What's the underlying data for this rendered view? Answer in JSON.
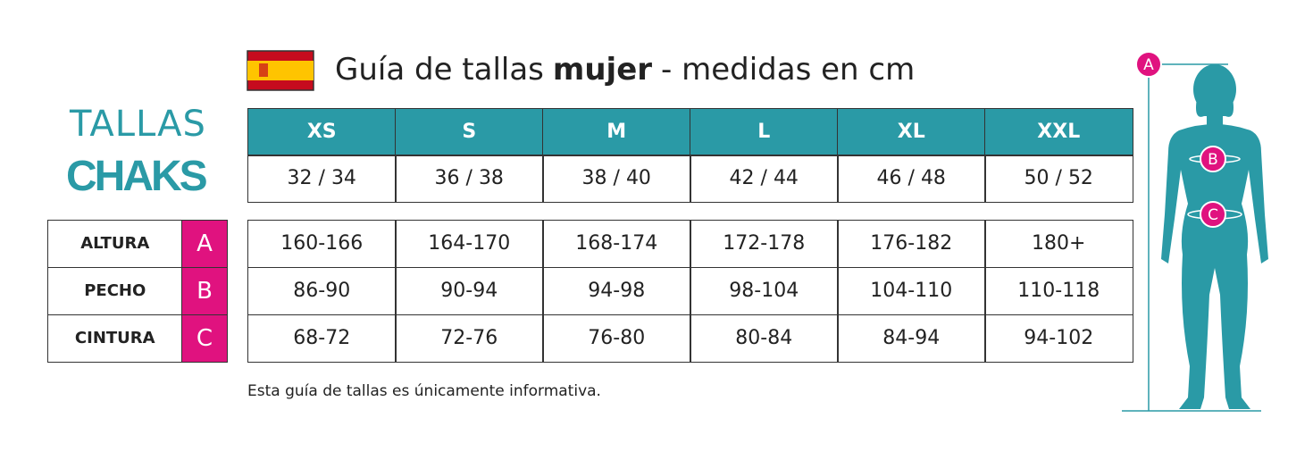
{
  "header": {
    "title": {
      "prefix": "Guía de tallas",
      "emphasis": "mujer",
      "suffix": "- medidas en cm"
    }
  },
  "logo": {
    "line1": "TALLAS",
    "line2": "CHAKS"
  },
  "table": {
    "sizes": [
      "XS",
      "S",
      "M",
      "L",
      "XL",
      "XXL"
    ],
    "eu_sizes": [
      "32 / 34",
      "36 / 38",
      "38 / 40",
      "42 / 44",
      "46 / 48",
      "50 / 52"
    ],
    "rows": [
      {
        "label": "ALTURA",
        "key": "A",
        "values": [
          "160-166",
          "164-170",
          "168-174",
          "172-178",
          "176-182",
          "180+"
        ]
      },
      {
        "label": "PECHO",
        "key": "B",
        "values": [
          "86-90",
          "90-94",
          "94-98",
          "98-104",
          "104-110",
          "110-118"
        ]
      },
      {
        "label": "CINTURA",
        "key": "C",
        "values": [
          "68-72",
          "72-76",
          "76-80",
          "80-84",
          "84-94",
          "94-102"
        ]
      }
    ]
  },
  "note": "Esta guía de tallas es únicamente informativa."
}
